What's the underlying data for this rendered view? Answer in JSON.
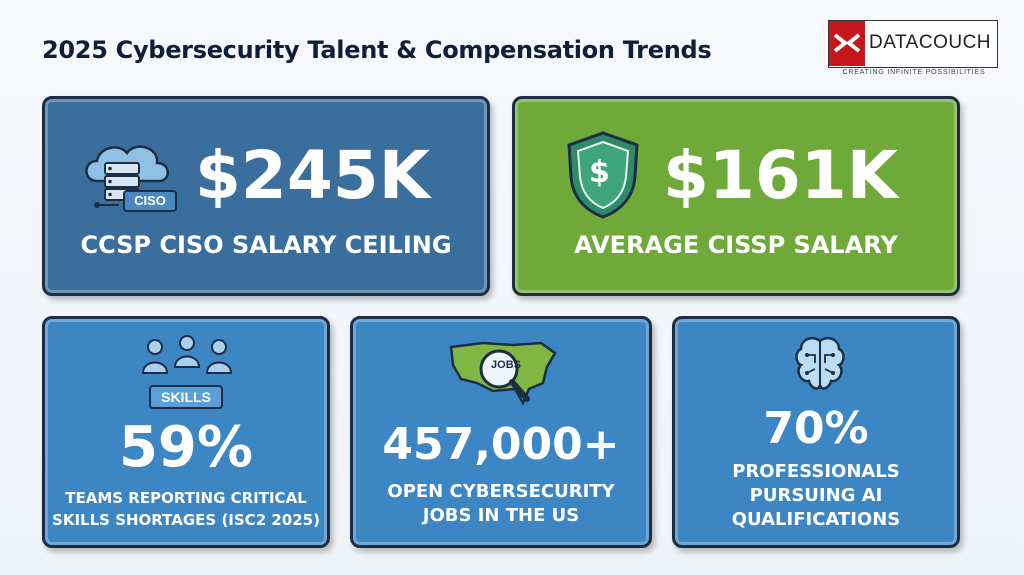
{
  "header": {
    "title": "2025 Cybersecurity Talent & Compensation Trends",
    "logo_text": "DATACOUCH",
    "logo_tagline": "CREATING INFINITE POSSIBILITIES"
  },
  "stats": {
    "ciso": {
      "value": "$245K",
      "caption": "CCSP CISO SALARY CEILING",
      "icon": "cloud-server-icon",
      "icon_label": "CISO"
    },
    "cissp": {
      "value": "$161K",
      "caption": "AVERAGE CISSP SALARY",
      "icon": "shield-dollar-icon",
      "icon_label": "$"
    },
    "skills": {
      "value": "59%",
      "caption_line1": "TEAMS REPORTING CRITICAL",
      "caption_line2": "SKILLS SHORTAGES (ISC2 2025)",
      "icon": "team-meeting-icon",
      "icon_label": "SKILLS"
    },
    "jobs": {
      "value": "457,000+",
      "caption_line1": "OPEN CYBERSECURITY",
      "caption_line2": "JOBS IN THE US",
      "icon": "us-map-magnifier-icon",
      "icon_label": "JOBS"
    },
    "ai": {
      "value": "70%",
      "caption_line1": "PROFESSIONALS",
      "caption_line2": "PURSUING AI",
      "caption_line3": "QUALIFICATIONS",
      "icon": "brain-circuit-icon"
    }
  },
  "colors": {
    "navy_card": "#3a6f9d",
    "green_card": "#6fa93a",
    "blue_card": "#3c86c4",
    "border": "#1d2d44",
    "title": "#0f1f3a",
    "logo_red": "#c4161c"
  }
}
